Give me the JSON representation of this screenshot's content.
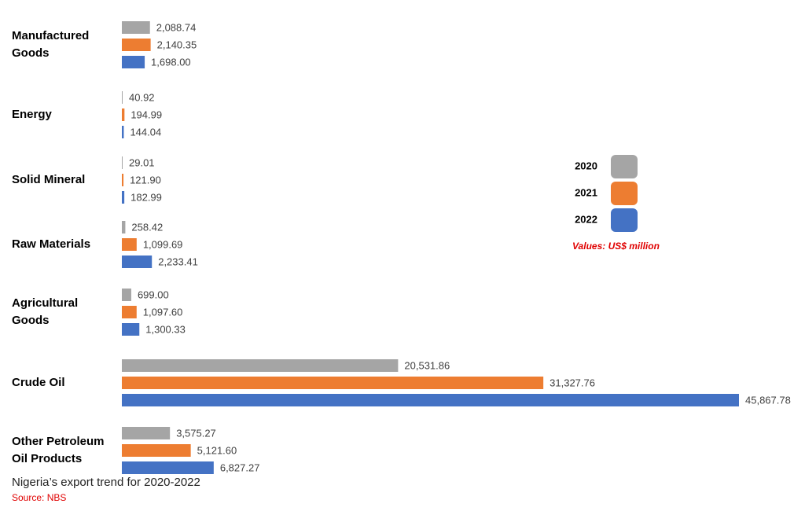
{
  "chart_data": {
    "type": "hbar",
    "categories": [
      "Manufactured Goods",
      "Energy",
      "Solid Mineral",
      "Raw Materials",
      "Agricultural Goods",
      "Crude Oil",
      "Other Petroleum Oil Products"
    ],
    "series": [
      {
        "name": "2020",
        "color": "#a5a5a5",
        "values": [
          2088.74,
          40.92,
          29.01,
          258.42,
          699.0,
          20531.86,
          3575.27
        ],
        "value_labels": [
          "2,088.74",
          "40.92",
          "29.01",
          "258.42",
          "699.00",
          "20,531.86",
          "3,575.27"
        ]
      },
      {
        "name": "2021",
        "color": "#ed7d31",
        "values": [
          2140.35,
          194.99,
          121.9,
          1099.69,
          1097.6,
          31327.76,
          5121.6
        ],
        "value_labels": [
          "2,140.35",
          "194.99",
          "121.90",
          "1,099.69",
          "1,097.60",
          "31,327.76",
          "5,121.60"
        ]
      },
      {
        "name": "2022",
        "color": "#4472c4",
        "values": [
          1698.0,
          144.04,
          182.99,
          2233.41,
          1300.33,
          45867.78,
          6827.27
        ],
        "value_labels": [
          "1,698.00",
          "144.04",
          "182.99",
          "2,233.41",
          "1,300.33",
          "45,867.78",
          "6,827.27"
        ]
      }
    ],
    "annotation": "Values: US$ million",
    "caption": "Nigeria’s export trend for 2020-2022",
    "source": "Source: NBS"
  }
}
